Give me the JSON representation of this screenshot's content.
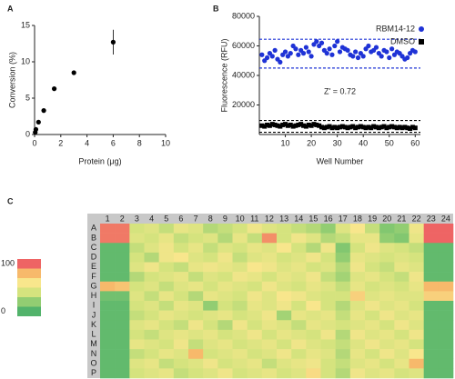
{
  "chart_data": [
    {
      "type": "scatter",
      "panel_label": "A",
      "xlabel": "Protein (μg)",
      "ylabel": "Conversion (%)",
      "x": [
        0.05,
        0.1,
        0.3,
        0.7,
        1.5,
        3,
        6
      ],
      "values": [
        0.3,
        0.7,
        1.7,
        3.3,
        6.3,
        8.5,
        12.7
      ],
      "errors": [
        null,
        null,
        null,
        null,
        null,
        null,
        1.7
      ],
      "color": "#000000",
      "marker": "circle",
      "xlim": [
        0,
        10
      ],
      "xticks": [
        0,
        2,
        4,
        6,
        8,
        10
      ],
      "ylim": [
        0,
        15
      ],
      "yticks": [
        0,
        5,
        10,
        15
      ]
    },
    {
      "type": "scatter",
      "panel_label": "B",
      "xlabel": "Well Number",
      "ylabel": "Fluorescence (RFU)",
      "annotation": "Z' = 0.72",
      "legend": "upper right",
      "x": [
        1,
        2,
        3,
        4,
        5,
        6,
        7,
        8,
        9,
        10,
        11,
        12,
        13,
        14,
        15,
        16,
        17,
        18,
        19,
        20,
        21,
        22,
        23,
        24,
        25,
        26,
        27,
        28,
        29,
        30,
        31,
        32,
        33,
        34,
        35,
        36,
        37,
        38,
        39,
        40,
        41,
        42,
        43,
        44,
        45,
        46,
        47,
        48,
        49,
        50,
        51,
        52,
        53,
        54,
        55,
        56,
        57,
        58,
        59,
        60
      ],
      "series": [
        {
          "name": "RBM14-12",
          "color": "#1f33d6",
          "marker": "circle",
          "values": [
            54000,
            50000,
            52000,
            55000,
            53000,
            57000,
            51000,
            49000,
            54000,
            56000,
            53000,
            55000,
            60000,
            58000,
            54000,
            57000,
            55000,
            59000,
            56000,
            53000,
            61000,
            63000,
            60000,
            62000,
            57000,
            55000,
            58000,
            54000,
            60000,
            63000,
            56000,
            59000,
            58000,
            57000,
            54000,
            53000,
            56000,
            52000,
            55000,
            53000,
            58000,
            60000,
            56000,
            57000,
            59000,
            55000,
            53000,
            57000,
            56000,
            52000,
            58000,
            54000,
            56000,
            55000,
            53000,
            51000,
            52000,
            55000,
            57000,
            56000
          ]
        },
        {
          "name": "DMSO",
          "color": "#000000",
          "marker": "square",
          "values": [
            6000,
            5500,
            6500,
            6000,
            7000,
            6500,
            6000,
            5500,
            6500,
            7000,
            6000,
            6500,
            5500,
            6000,
            6500,
            7000,
            6000,
            5500,
            6500,
            6000,
            7000,
            6500,
            6000,
            5000,
            4500,
            5000,
            5500,
            4500,
            5000,
            4500,
            5000,
            5500,
            5000,
            4500,
            5000,
            5500,
            4500,
            5000,
            5500,
            5000,
            4500,
            5000,
            4500,
            5500,
            5000,
            4500,
            5000,
            5500,
            4500,
            5000,
            5500,
            5000,
            4500,
            5000,
            4500,
            5000,
            4500,
            4000,
            5000,
            4500
          ]
        }
      ],
      "reference_lines": [
        {
          "value": 64500,
          "color": "#1f33d6"
        },
        {
          "value": 45000,
          "color": "#1f33d6"
        },
        {
          "value": 9500,
          "color": "#000000"
        },
        {
          "value": 1500,
          "color": "#000000"
        }
      ],
      "xlim": [
        0,
        62
      ],
      "xticks": [
        10,
        20,
        30,
        40,
        50,
        60
      ],
      "ylim": [
        0,
        80000
      ],
      "yticks": [
        20000,
        40000,
        60000,
        80000
      ]
    },
    {
      "type": "heatmap",
      "panel_label": "C",
      "col_labels": [
        1,
        2,
        3,
        4,
        5,
        6,
        7,
        8,
        9,
        10,
        11,
        12,
        13,
        14,
        15,
        16,
        17,
        18,
        19,
        20,
        21,
        22,
        23,
        24
      ],
      "row_labels": [
        "A",
        "B",
        "C",
        "D",
        "E",
        "F",
        "G",
        "H",
        "I",
        "J",
        "K",
        "L",
        "M",
        "N",
        "O",
        "P"
      ],
      "zlim": [
        0,
        100
      ],
      "colorbar_ticks": [
        100,
        0
      ],
      "colors": [
        "#52b36b",
        "#92cd72",
        "#d5e37e",
        "#f8e68c",
        "#f7b96b",
        "#ee6464"
      ],
      "values": [
        [
          95,
          95,
          40,
          45,
          35,
          50,
          45,
          30,
          35,
          40,
          55,
          45,
          40,
          35,
          30,
          20,
          45,
          60,
          35,
          15,
          20,
          55,
          100,
          100
        ],
        [
          95,
          95,
          45,
          40,
          50,
          35,
          40,
          45,
          30,
          50,
          35,
          90,
          40,
          55,
          45,
          30,
          35,
          50,
          50,
          20,
          15,
          50,
          100,
          100
        ],
        [
          5,
          5,
          35,
          45,
          55,
          40,
          50,
          35,
          45,
          40,
          50,
          45,
          60,
          40,
          30,
          55,
          15,
          40,
          55,
          45,
          40,
          35,
          5,
          5
        ],
        [
          5,
          5,
          40,
          30,
          55,
          60,
          45,
          40,
          55,
          35,
          45,
          50,
          40,
          45,
          55,
          40,
          20,
          50,
          45,
          40,
          45,
          40,
          5,
          5
        ],
        [
          5,
          5,
          45,
          55,
          40,
          35,
          50,
          55,
          50,
          45,
          60,
          55,
          45,
          50,
          40,
          45,
          30,
          55,
          40,
          35,
          50,
          45,
          5,
          5
        ],
        [
          5,
          5,
          30,
          40,
          45,
          50,
          35,
          45,
          40,
          55,
          50,
          40,
          50,
          45,
          55,
          35,
          25,
          45,
          50,
          40,
          35,
          55,
          5,
          5
        ],
        [
          80,
          75,
          40,
          45,
          35,
          45,
          50,
          40,
          50,
          45,
          40,
          55,
          45,
          40,
          50,
          45,
          35,
          50,
          40,
          45,
          40,
          50,
          80,
          80
        ],
        [
          10,
          10,
          45,
          35,
          50,
          40,
          30,
          50,
          45,
          40,
          55,
          45,
          60,
          55,
          45,
          40,
          40,
          70,
          45,
          50,
          45,
          45,
          70,
          70
        ],
        [
          5,
          5,
          40,
          45,
          35,
          50,
          45,
          20,
          40,
          35,
          50,
          45,
          55,
          40,
          60,
          40,
          30,
          45,
          55,
          45,
          50,
          40,
          5,
          5
        ],
        [
          5,
          5,
          35,
          40,
          50,
          45,
          40,
          45,
          50,
          40,
          45,
          55,
          25,
          50,
          45,
          50,
          35,
          50,
          40,
          55,
          45,
          50,
          5,
          5
        ],
        [
          5,
          5,
          45,
          50,
          40,
          35,
          55,
          40,
          30,
          55,
          40,
          50,
          45,
          35,
          50,
          45,
          40,
          45,
          50,
          40,
          55,
          45,
          5,
          5
        ],
        [
          5,
          5,
          40,
          35,
          45,
          50,
          45,
          50,
          40,
          45,
          55,
          40,
          50,
          45,
          40,
          55,
          30,
          55,
          45,
          50,
          40,
          55,
          5,
          5
        ],
        [
          5,
          5,
          50,
          45,
          40,
          55,
          35,
          45,
          50,
          40,
          45,
          50,
          40,
          55,
          45,
          40,
          35,
          45,
          55,
          45,
          50,
          40,
          5,
          5
        ],
        [
          5,
          5,
          35,
          40,
          50,
          45,
          80,
          40,
          45,
          50,
          40,
          45,
          55,
          40,
          50,
          45,
          30,
          50,
          40,
          55,
          45,
          60,
          5,
          5
        ],
        [
          5,
          5,
          45,
          50,
          35,
          40,
          45,
          55,
          40,
          45,
          50,
          35,
          45,
          50,
          55,
          40,
          35,
          45,
          50,
          40,
          50,
          80,
          5,
          5
        ],
        [
          5,
          5,
          40,
          45,
          50,
          35,
          40,
          45,
          55,
          40,
          45,
          50,
          40,
          45,
          65,
          40,
          30,
          55,
          45,
          50,
          40,
          45,
          5,
          5
        ]
      ]
    }
  ]
}
